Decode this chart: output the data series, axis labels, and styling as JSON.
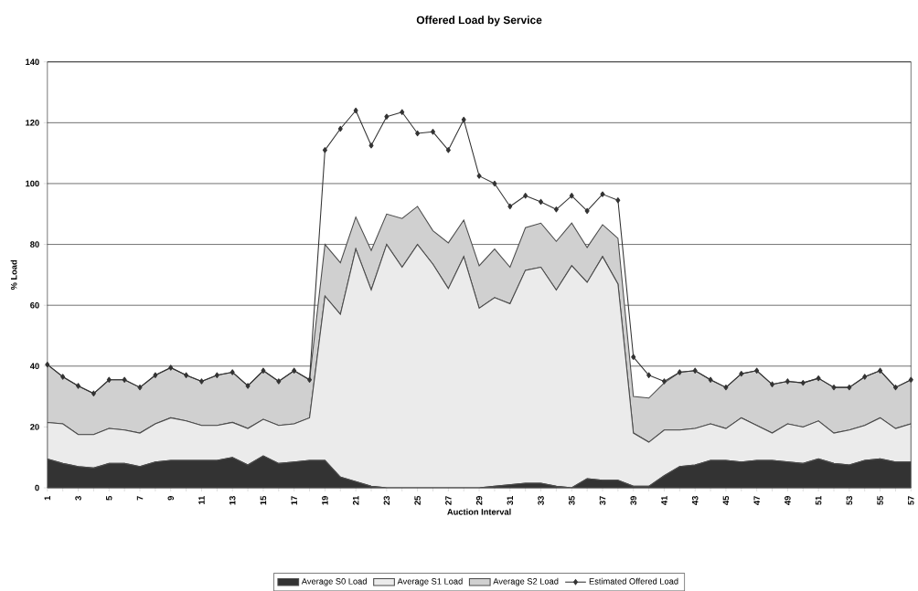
{
  "chart_data": {
    "type": "area",
    "title": "Offered Load by Service",
    "xlabel": "Auction Interval",
    "ylabel": "% Load",
    "categories": [
      "1",
      null,
      "3",
      null,
      "5",
      null,
      "7",
      null,
      "9",
      null,
      "11",
      null,
      "13",
      null,
      "15",
      null,
      "17",
      null,
      "19",
      null,
      "21",
      null,
      "23",
      null,
      "25",
      null,
      "27",
      null,
      "29",
      null,
      "31",
      null,
      "33",
      null,
      "35",
      null,
      "37",
      null,
      "39",
      null,
      "41",
      null,
      "43",
      null,
      "45",
      null,
      "47",
      null,
      "49",
      null,
      "51",
      null,
      "53",
      null,
      "55",
      null,
      "57"
    ],
    "stacked": true,
    "ylim": [
      0,
      140
    ],
    "yticks": [
      0,
      20,
      40,
      60,
      80,
      100,
      120,
      140
    ],
    "grid": "y",
    "legend": "bottom",
    "series": [
      {
        "name": "Average S0 Load",
        "color": "#333333",
        "values": [
          9.5,
          8,
          7,
          6.5,
          8,
          8,
          7,
          8.5,
          9,
          9,
          9,
          9,
          10,
          7.5,
          10.5,
          8,
          8.5,
          9,
          9,
          3.5,
          2,
          0.5,
          0,
          0,
          0,
          0,
          0,
          0,
          0,
          0.5,
          1,
          1.5,
          1.5,
          0.5,
          0,
          3,
          2.5,
          2.5,
          0.5,
          0.5,
          4,
          7,
          7.5,
          9,
          9,
          8.5,
          9,
          9,
          8.5,
          8,
          9.5,
          8,
          7.5,
          9,
          9.5,
          8.5,
          8.5
        ]
      },
      {
        "name": "Average S1 Load",
        "color": "#ebebeb",
        "values": [
          12,
          13,
          10.5,
          11,
          11.5,
          11,
          11,
          12.5,
          14,
          13,
          11.5,
          11.5,
          11.5,
          12,
          12,
          12.5,
          12.5,
          14,
          54,
          53.5,
          76.5,
          64.5,
          80,
          72.5,
          80,
          73.5,
          65.5,
          76,
          59,
          62,
          59.5,
          70,
          71,
          64.5,
          73,
          64.5,
          73.5,
          64.5,
          17.5,
          14.5,
          15,
          12,
          12,
          12,
          10.5,
          14.5,
          11.5,
          9,
          12.5,
          12,
          12.5,
          10,
          11.5,
          11.5,
          13.5,
          11,
          12.5
        ]
      },
      {
        "name": "Average S2 Load",
        "color": "#d0d0d0",
        "values": [
          19,
          15.5,
          16,
          13.5,
          16,
          16.5,
          15,
          16,
          16.5,
          15,
          14.5,
          16.5,
          16.5,
          14,
          16,
          14.5,
          17.5,
          12.5,
          17,
          17,
          10.5,
          13,
          10,
          16,
          12.5,
          11,
          15,
          12,
          14,
          16,
          12,
          14,
          14.5,
          16,
          14,
          11.5,
          10.5,
          15,
          12,
          14.5,
          15.5,
          19,
          19,
          14.5,
          13.5,
          14.5,
          18,
          16,
          14,
          14.5,
          14,
          15,
          14,
          16,
          15.5,
          13.5,
          14.5
        ]
      },
      {
        "name": "Estimated Offered Load",
        "type": "line",
        "color": "#333333",
        "marker": "diamond",
        "values": [
          40.5,
          36.5,
          33.5,
          31,
          35.5,
          35.5,
          33,
          37,
          39.5,
          37,
          35,
          37,
          38,
          33.5,
          38.5,
          35,
          38.5,
          35.5,
          111,
          118,
          124,
          112.5,
          122,
          123.5,
          116.5,
          117,
          111,
          121,
          102.5,
          100,
          92.5,
          96,
          94,
          91.5,
          96,
          91,
          96.5,
          94.5,
          43,
          37,
          35,
          38,
          38.5,
          35.5,
          33,
          37.5,
          38.5,
          34,
          35,
          34.5,
          36,
          33,
          33,
          36.5,
          38.5,
          33,
          35.5
        ]
      }
    ]
  }
}
